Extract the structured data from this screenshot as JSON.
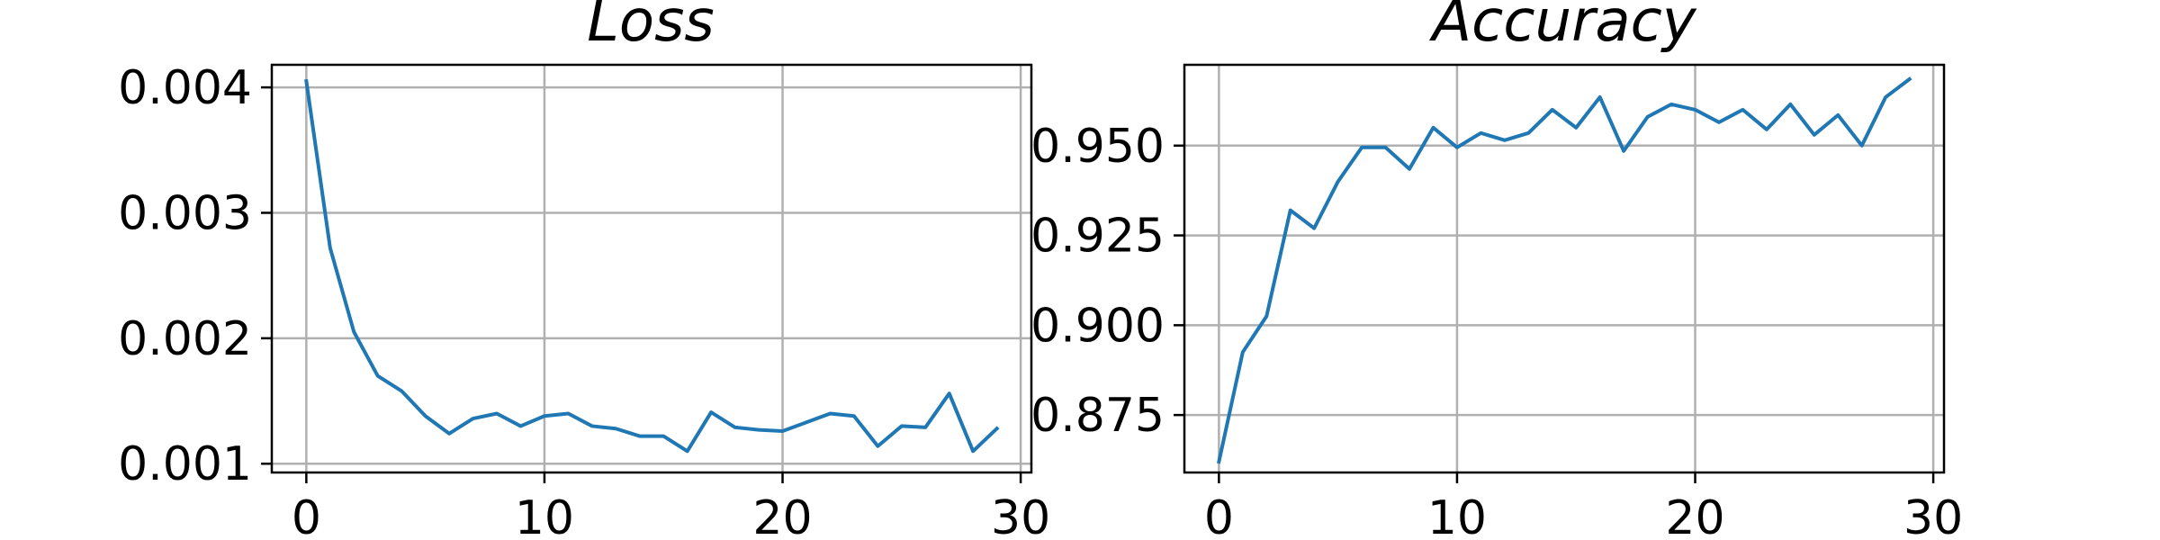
{
  "chart_data": [
    {
      "type": "line",
      "title": "Loss",
      "xlabel": "",
      "ylabel": "",
      "xlim": [
        -1.45,
        30.45
      ],
      "ylim": [
        0.00093,
        0.00418
      ],
      "xticks": [
        0,
        10,
        20,
        30
      ],
      "yticks": [
        0.001,
        0.002,
        0.003,
        0.004
      ],
      "xtick_labels": [
        "0",
        "10",
        "20",
        "30"
      ],
      "ytick_labels": [
        "0.001",
        "0.002",
        "0.003",
        "0.004"
      ],
      "grid": true,
      "color": "#1f77b4",
      "series": [
        {
          "x": [
            0,
            1,
            2,
            3,
            4,
            5,
            6,
            7,
            8,
            9,
            10,
            11,
            12,
            13,
            14,
            15,
            16,
            17,
            18,
            19,
            20,
            21,
            22,
            23,
            24,
            25,
            26,
            27,
            28,
            29
          ],
          "values": [
            0.00405,
            0.00272,
            0.00205,
            0.0017,
            0.00158,
            0.00138,
            0.00124,
            0.00136,
            0.0014,
            0.0013,
            0.00138,
            0.0014,
            0.0013,
            0.00128,
            0.00122,
            0.00122,
            0.0011,
            0.00141,
            0.00129,
            0.00127,
            0.00126,
            0.00133,
            0.0014,
            0.00138,
            0.00114,
            0.0013,
            0.00129,
            0.00156,
            0.0011,
            0.00128
          ]
        }
      ]
    },
    {
      "type": "line",
      "title": "Accuracy",
      "xlabel": "",
      "ylabel": "",
      "xlim": [
        -1.45,
        30.45
      ],
      "ylim": [
        0.859,
        0.9725
      ],
      "xticks": [
        0,
        10,
        20,
        30
      ],
      "yticks": [
        0.875,
        0.9,
        0.925,
        0.95
      ],
      "xtick_labels": [
        "0",
        "10",
        "20",
        "30"
      ],
      "ytick_labels": [
        "0.875",
        "0.900",
        "0.925",
        "0.950"
      ],
      "grid": true,
      "color": "#1f77b4",
      "series": [
        {
          "x": [
            0,
            1,
            2,
            3,
            4,
            5,
            6,
            7,
            8,
            9,
            10,
            11,
            12,
            13,
            14,
            15,
            16,
            17,
            18,
            19,
            20,
            21,
            22,
            23,
            24,
            25,
            26,
            27,
            28,
            29
          ],
          "values": [
            0.862,
            0.8925,
            0.9025,
            0.932,
            0.927,
            0.94,
            0.9495,
            0.9495,
            0.9435,
            0.955,
            0.9495,
            0.9535,
            0.9515,
            0.9535,
            0.96,
            0.955,
            0.9635,
            0.9485,
            0.958,
            0.9615,
            0.96,
            0.9565,
            0.96,
            0.9545,
            0.9615,
            0.953,
            0.9585,
            0.95,
            0.9635,
            0.9685
          ]
        }
      ]
    }
  ]
}
